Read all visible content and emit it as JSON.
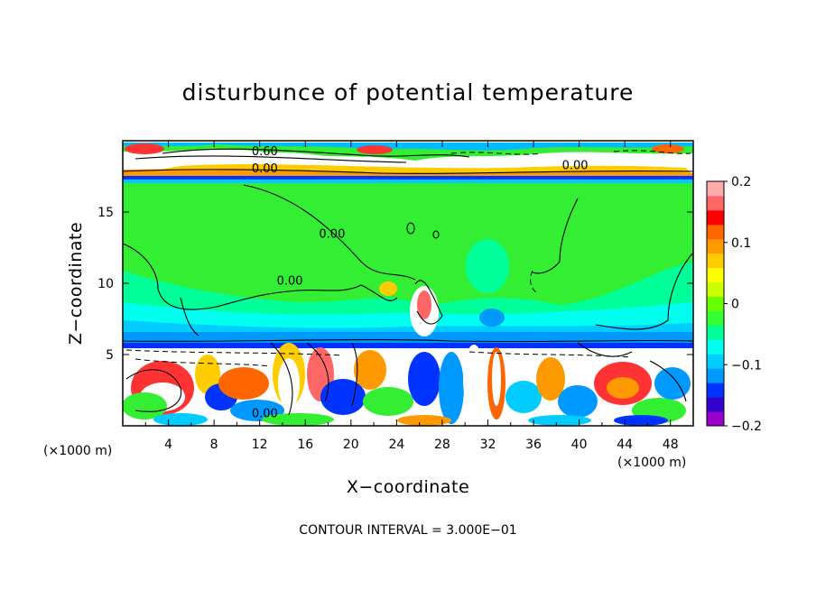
{
  "chart_data": {
    "type": "heatmap",
    "title": "disturbunce of potential temperature",
    "xlabel": "X−coordinate",
    "ylabel": "Z−coordinate",
    "x_unit_label": "(×1000 m)",
    "x_unit_label_right": "(×1000 m)",
    "xticks": [
      "4",
      "8",
      "12",
      "16",
      "20",
      "24",
      "28",
      "32",
      "36",
      "40",
      "44",
      "48"
    ],
    "yticks": [
      "5",
      "10",
      "15"
    ],
    "xlim": [
      0,
      50
    ],
    "ylim": [
      0,
      20
    ],
    "colorbar": {
      "ticks": [
        "0.2",
        "0.1",
        "0",
        "−0.1",
        "−0.2"
      ],
      "range": [
        -0.2,
        0.2
      ],
      "colors": [
        "#9900cc",
        "#3300cc",
        "#0033ff",
        "#0099ff",
        "#00ccff",
        "#00ffee",
        "#00ff99",
        "#33ff33",
        "#66ff00",
        "#ccff00",
        "#ffff00",
        "#ffcc00",
        "#ff9900",
        "#ff6600",
        "#ff0000",
        "#ff6666",
        "#ffaaaa"
      ]
    },
    "contour_labels": [
      {
        "text": "0.60",
        "x": 11.3,
        "z": 19.0
      },
      {
        "text": "0.00",
        "x": 11.3,
        "z": 17.8
      },
      {
        "text": "0.00",
        "x": 38.5,
        "z": 18.0
      },
      {
        "text": "0.00",
        "x": 17.2,
        "z": 13.2
      },
      {
        "text": "0.00",
        "x": 13.5,
        "z": 9.9
      },
      {
        "text": "0.00",
        "x": 11.3,
        "z": 0.6
      }
    ],
    "footer": "CONTOUR INTERVAL = 3.000E−01"
  }
}
